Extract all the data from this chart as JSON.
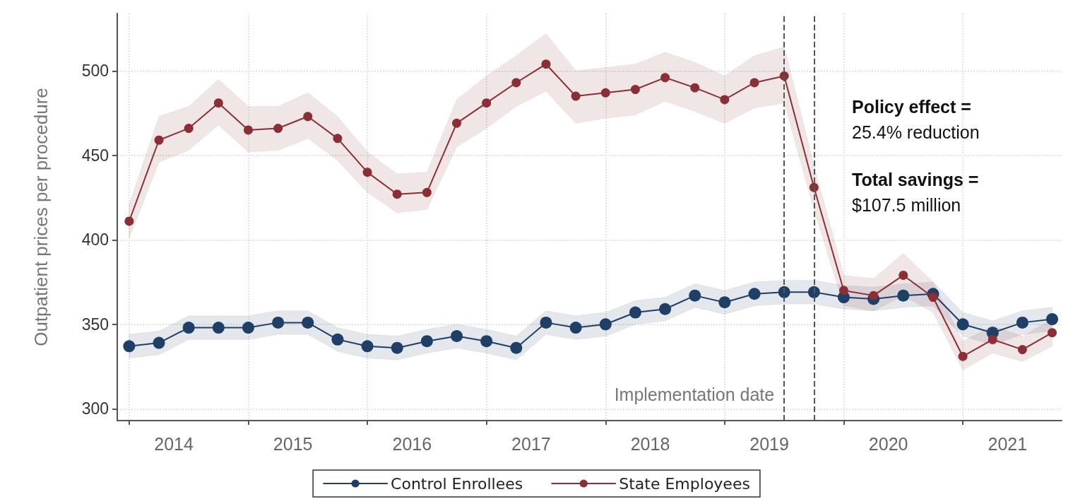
{
  "chart_data": {
    "type": "line",
    "ylabel": "Outpatient prices per procedure",
    "x": [
      2014,
      2014.25,
      2014.5,
      2014.75,
      2015,
      2015.25,
      2015.5,
      2015.75,
      2016,
      2016.25,
      2016.5,
      2016.75,
      2017,
      2017.25,
      2017.5,
      2017.75,
      2018,
      2018.25,
      2018.5,
      2018.75,
      2019,
      2019.25,
      2019.5,
      2019.75,
      2020,
      2020.25,
      2020.5,
      2020.75,
      2021,
      2021.25,
      2021.5,
      2021.75
    ],
    "xlim": [
      2013.9,
      2021.83
    ],
    "xticks": [
      {
        "value": 2014,
        "label": null
      },
      {
        "value": 2014.375,
        "label": "2014"
      },
      {
        "value": 2015,
        "label": null
      },
      {
        "value": 2015.375,
        "label": "2015"
      },
      {
        "value": 2016,
        "label": null
      },
      {
        "value": 2016.375,
        "label": "2016"
      },
      {
        "value": 2017,
        "label": null
      },
      {
        "value": 2017.375,
        "label": "2017"
      },
      {
        "value": 2018,
        "label": null
      },
      {
        "value": 2018.375,
        "label": "2018"
      },
      {
        "value": 2019,
        "label": null
      },
      {
        "value": 2019.375,
        "label": "2019"
      },
      {
        "value": 2020,
        "label": null
      },
      {
        "value": 2020.375,
        "label": "2020"
      },
      {
        "value": 2021,
        "label": null
      },
      {
        "value": 2021.375,
        "label": "2021"
      }
    ],
    "ylim": [
      293,
      534
    ],
    "yticks": [
      300,
      350,
      400,
      450,
      500
    ],
    "grid": true,
    "legend": "bottom",
    "marker": "circle",
    "line_style": "solid",
    "series": [
      {
        "name": "Control Enrollees",
        "color": "#1f3f66",
        "values": [
          337,
          339,
          348,
          348,
          348,
          351,
          351,
          341,
          337,
          336,
          340,
          343,
          340,
          336,
          351,
          348,
          350,
          357,
          359,
          367,
          363,
          368,
          369,
          369,
          366,
          365,
          367,
          368,
          350,
          345,
          351,
          353
        ],
        "lower": [
          330,
          332,
          341,
          341,
          341,
          344,
          344,
          334,
          330,
          329,
          333,
          336,
          333,
          329,
          344,
          341,
          343,
          350,
          352,
          360,
          356,
          361,
          362,
          362,
          359,
          358,
          360,
          361,
          343,
          338,
          344,
          346
        ],
        "upper": [
          344,
          346,
          355,
          355,
          355,
          358,
          358,
          348,
          344,
          343,
          347,
          350,
          347,
          343,
          358,
          355,
          357,
          364,
          366,
          374,
          370,
          375,
          376,
          376,
          373,
          372,
          374,
          375,
          357,
          352,
          358,
          360
        ]
      },
      {
        "name": "State Employees",
        "color": "#8b2e35",
        "values": [
          411,
          459,
          466,
          481,
          465,
          466,
          473,
          460,
          440,
          427,
          428,
          469,
          481,
          493,
          504,
          485,
          487,
          489,
          496,
          490,
          483,
          493,
          497,
          431,
          370,
          367,
          379,
          366,
          331,
          341,
          335,
          345
        ],
        "lower": [
          401,
          446,
          453,
          468,
          452,
          453,
          460,
          447,
          428,
          416,
          418,
          455,
          466,
          479,
          488,
          469,
          472,
          474,
          482,
          476,
          469,
          478,
          481,
          418,
          361,
          358,
          367,
          357,
          323,
          333,
          328,
          337
        ],
        "upper": [
          421,
          473,
          479,
          495,
          479,
          479,
          487,
          473,
          452,
          439,
          440,
          483,
          497,
          509,
          522,
          500,
          502,
          504,
          511,
          505,
          497,
          509,
          514,
          444,
          379,
          377,
          392,
          375,
          340,
          349,
          343,
          353
        ]
      }
    ],
    "ref_lines": [
      {
        "axis": "x",
        "value": 2019.5,
        "label": "Implementation date",
        "color": "#555555",
        "line_style": "dashed"
      },
      {
        "axis": "x",
        "value": 2019.75,
        "label": null,
        "color": "#555555",
        "line_style": "dashed"
      }
    ],
    "annotations": [
      "Policy effect =",
      "25.4% reduction",
      "Total savings =",
      "$107.5 million"
    ]
  }
}
